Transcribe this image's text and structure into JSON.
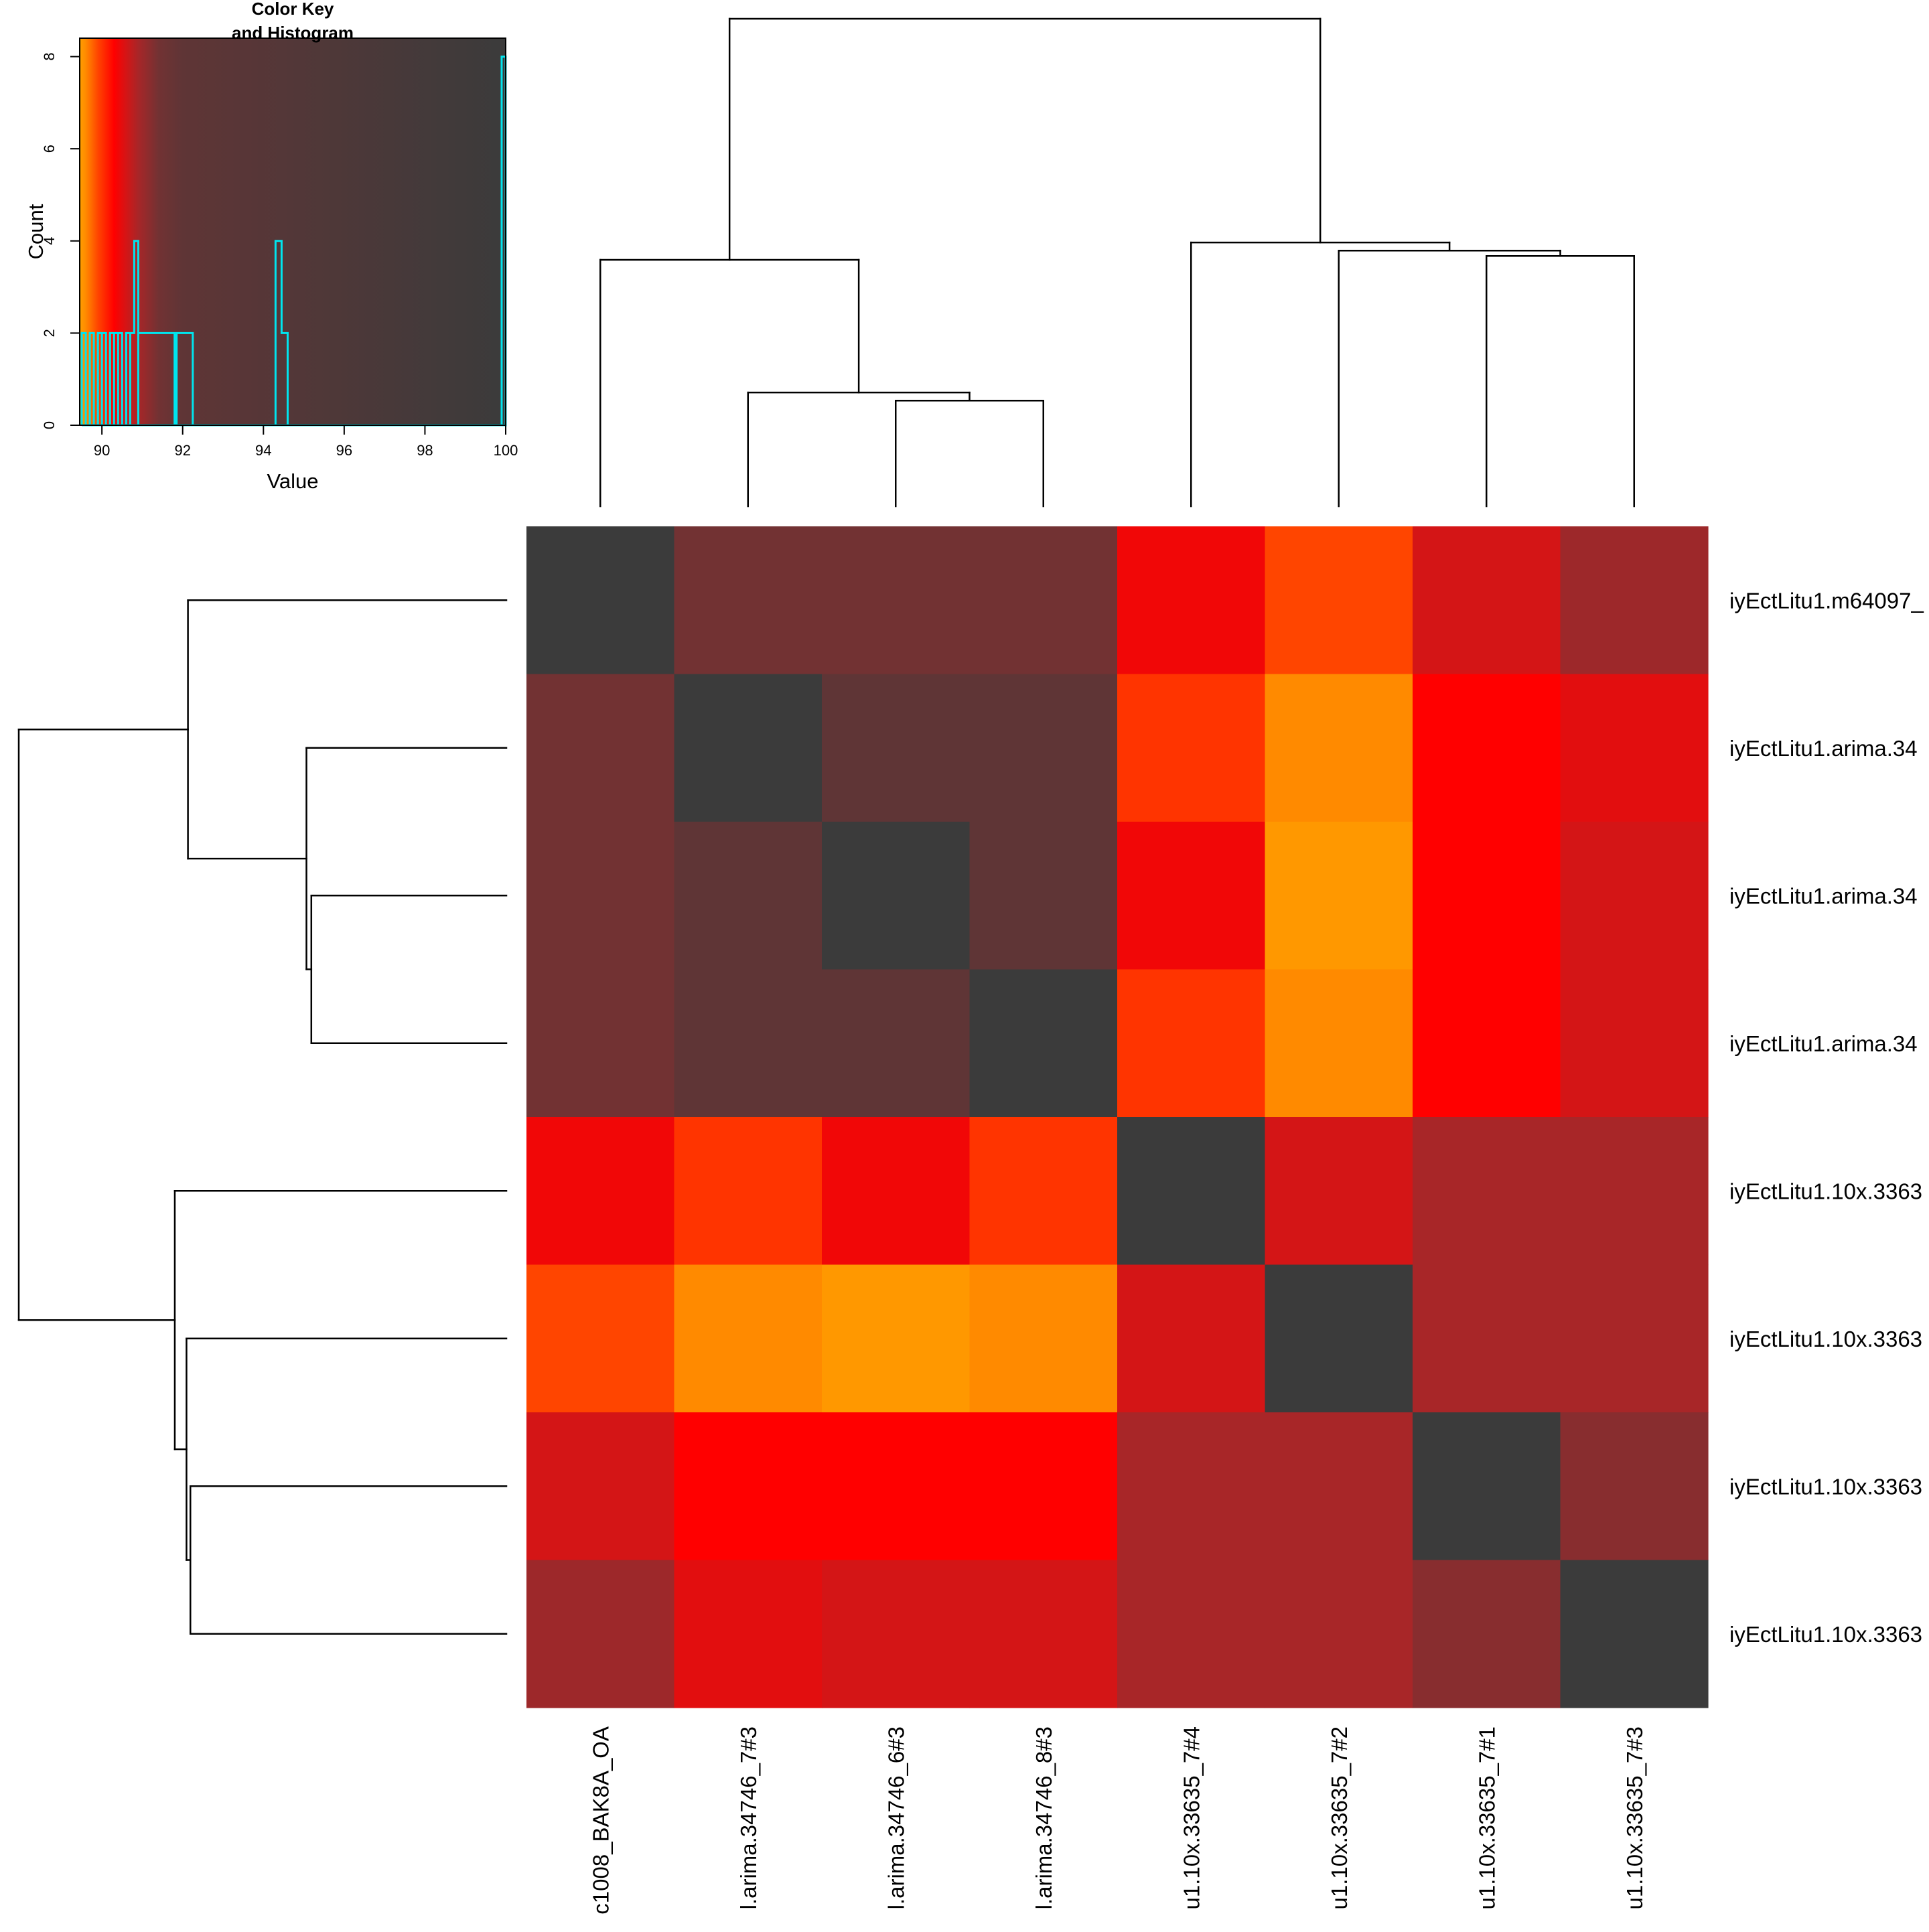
{
  "chart_data": {
    "type": "heatmap",
    "row_labels": [
      "iyEctLitu1.m64097_",
      "iyEctLitu1.arima.34",
      "iyEctLitu1.arima.34",
      "iyEctLitu1.arima.34",
      "iyEctLitu1.10x.3363",
      "iyEctLitu1.10x.3363",
      "iyEctLitu1.10x.3363",
      "iyEctLitu1.10x.3363"
    ],
    "col_labels": [
      "c1008_BAK8A_OA",
      "l.arima.34746_7#3",
      "l.arima.34746_6#3",
      "l.arima.34746_8#3",
      "u1.10x.33635_7#4",
      "u1.10x.33635_7#2",
      "u1.10x.33635_7#1",
      "u1.10x.33635_7#3"
    ],
    "matrix": [
      [
        100,
        91.4,
        91.4,
        91.4,
        90.4,
        89.9,
        90.6,
        91.0
      ],
      [
        91.4,
        100,
        92.0,
        92.0,
        90.0,
        89.6,
        90.3,
        90.5
      ],
      [
        91.4,
        92.0,
        100,
        92.0,
        90.4,
        89.5,
        90.3,
        90.6
      ],
      [
        91.4,
        92.0,
        92.0,
        100,
        90.0,
        89.6,
        90.3,
        90.6
      ],
      [
        90.4,
        90.0,
        90.4,
        90.0,
        100,
        90.6,
        90.9,
        90.9
      ],
      [
        89.9,
        89.6,
        89.5,
        89.6,
        90.6,
        100,
        90.9,
        90.9
      ],
      [
        90.6,
        90.3,
        90.3,
        90.3,
        90.9,
        90.9,
        100,
        91.2
      ],
      [
        91.0,
        90.5,
        90.6,
        90.6,
        90.9,
        90.9,
        91.2,
        100
      ]
    ],
    "color_key": {
      "title": "Color Key\nand Histogram",
      "xlabel": "Value",
      "ylabel": "Count",
      "x_range": [
        89.45,
        100
      ],
      "y_range": [
        0,
        8.4
      ],
      "x_ticks": [
        90,
        92,
        94,
        96,
        98,
        100
      ],
      "y_ticks": [
        0,
        2,
        4,
        6,
        8
      ],
      "histogram_color": "#00e5ee",
      "histogram": [
        {
          "x": 89.5,
          "count": 2
        },
        {
          "x": 89.6,
          "count": 0
        },
        {
          "x": 89.7,
          "count": 2
        },
        {
          "x": 89.8,
          "count": 0
        },
        {
          "x": 89.9,
          "count": 2
        },
        {
          "x": 90.0,
          "count": 2
        },
        {
          "x": 90.1,
          "count": 0
        },
        {
          "x": 90.2,
          "count": 2
        },
        {
          "x": 90.3,
          "count": 2
        },
        {
          "x": 90.4,
          "count": 2
        },
        {
          "x": 90.5,
          "count": 0
        },
        {
          "x": 90.6,
          "count": 2
        },
        {
          "x": 90.7,
          "count": 2
        },
        {
          "x": 90.8,
          "count": 4
        },
        {
          "x": 90.9,
          "count": 2
        },
        {
          "x": 91.8,
          "count": 0
        },
        {
          "x": 91.85,
          "count": 2
        },
        {
          "x": 92.25,
          "count": 0
        },
        {
          "x": 94.3,
          "count": 4
        },
        {
          "x": 94.45,
          "count": 2
        },
        {
          "x": 94.6,
          "count": 0
        },
        {
          "x": 99.9,
          "count": 8
        }
      ]
    },
    "palette": [
      {
        "value": 89.45,
        "color": "#ff9f00"
      },
      {
        "value": 89.6,
        "color": "#ff8a00"
      },
      {
        "value": 89.9,
        "color": "#ff4500"
      },
      {
        "value": 90.3,
        "color": "#ff0000"
      },
      {
        "value": 90.6,
        "color": "#d41516"
      },
      {
        "value": 90.9,
        "color": "#a82628"
      },
      {
        "value": 91.4,
        "color": "#723233"
      },
      {
        "value": 92.0,
        "color": "#5f3536"
      },
      {
        "value": 100,
        "color": "#3b3b3b"
      }
    ],
    "dendrogram_color": "#000000",
    "col_dendrogram_merges": [
      {
        "a": 2,
        "b": 3,
        "height": 0.195
      },
      {
        "a": 1,
        "b": "c0",
        "height": 0.21
      },
      {
        "a": 0,
        "b": "c1",
        "height": 0.455
      },
      {
        "a": 6,
        "b": 7,
        "height": 0.462
      },
      {
        "a": 5,
        "b": "c3",
        "height": 0.472
      },
      {
        "a": 4,
        "b": "c4",
        "height": 0.487
      },
      {
        "a": "c2",
        "b": "c5",
        "height": 0.9
      }
    ],
    "row_dendrogram_merges": [
      {
        "a": 2,
        "b": 3,
        "height": 0.4
      },
      {
        "a": 1,
        "b": "c0",
        "height": 0.41
      },
      {
        "a": 0,
        "b": "c1",
        "height": 0.653
      },
      {
        "a": 6,
        "b": 7,
        "height": 0.648
      },
      {
        "a": 5,
        "b": "c3",
        "height": 0.656
      },
      {
        "a": 4,
        "b": "c4",
        "height": 0.68
      },
      {
        "a": "c2",
        "b": "c5",
        "height": 1.0
      }
    ]
  }
}
